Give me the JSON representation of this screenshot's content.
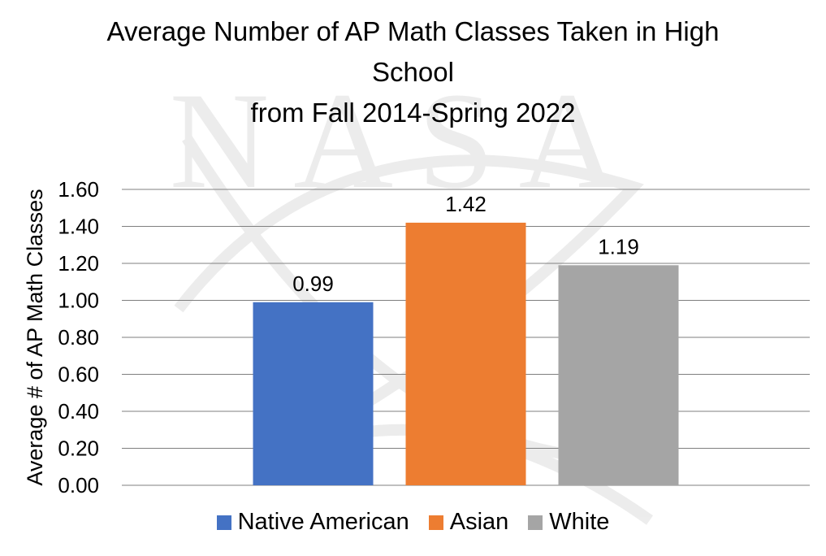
{
  "chart_data": {
    "type": "bar",
    "title_lines": [
      "Average Number of AP Math Classes Taken in High",
      "School",
      "from Fall 2014-Spring 2022"
    ],
    "xlabel": "",
    "ylabel": "Average # of AP Math Classes",
    "ylim": [
      0,
      1.6
    ],
    "yticks": [
      "0.00",
      "0.20",
      "0.40",
      "0.60",
      "0.80",
      "1.00",
      "1.20",
      "1.40",
      "1.60"
    ],
    "grid": true,
    "legend_position": "bottom",
    "series": [
      {
        "name": "Native American",
        "values": [
          0.99
        ],
        "label": "0.99",
        "color": "#4472C4"
      },
      {
        "name": "Asian",
        "values": [
          1.42
        ],
        "label": "1.42",
        "color": "#ED7D31"
      },
      {
        "name": "White",
        "values": [
          1.19
        ],
        "label": "1.19",
        "color": "#A5A5A5"
      }
    ],
    "watermark": "NASA"
  }
}
